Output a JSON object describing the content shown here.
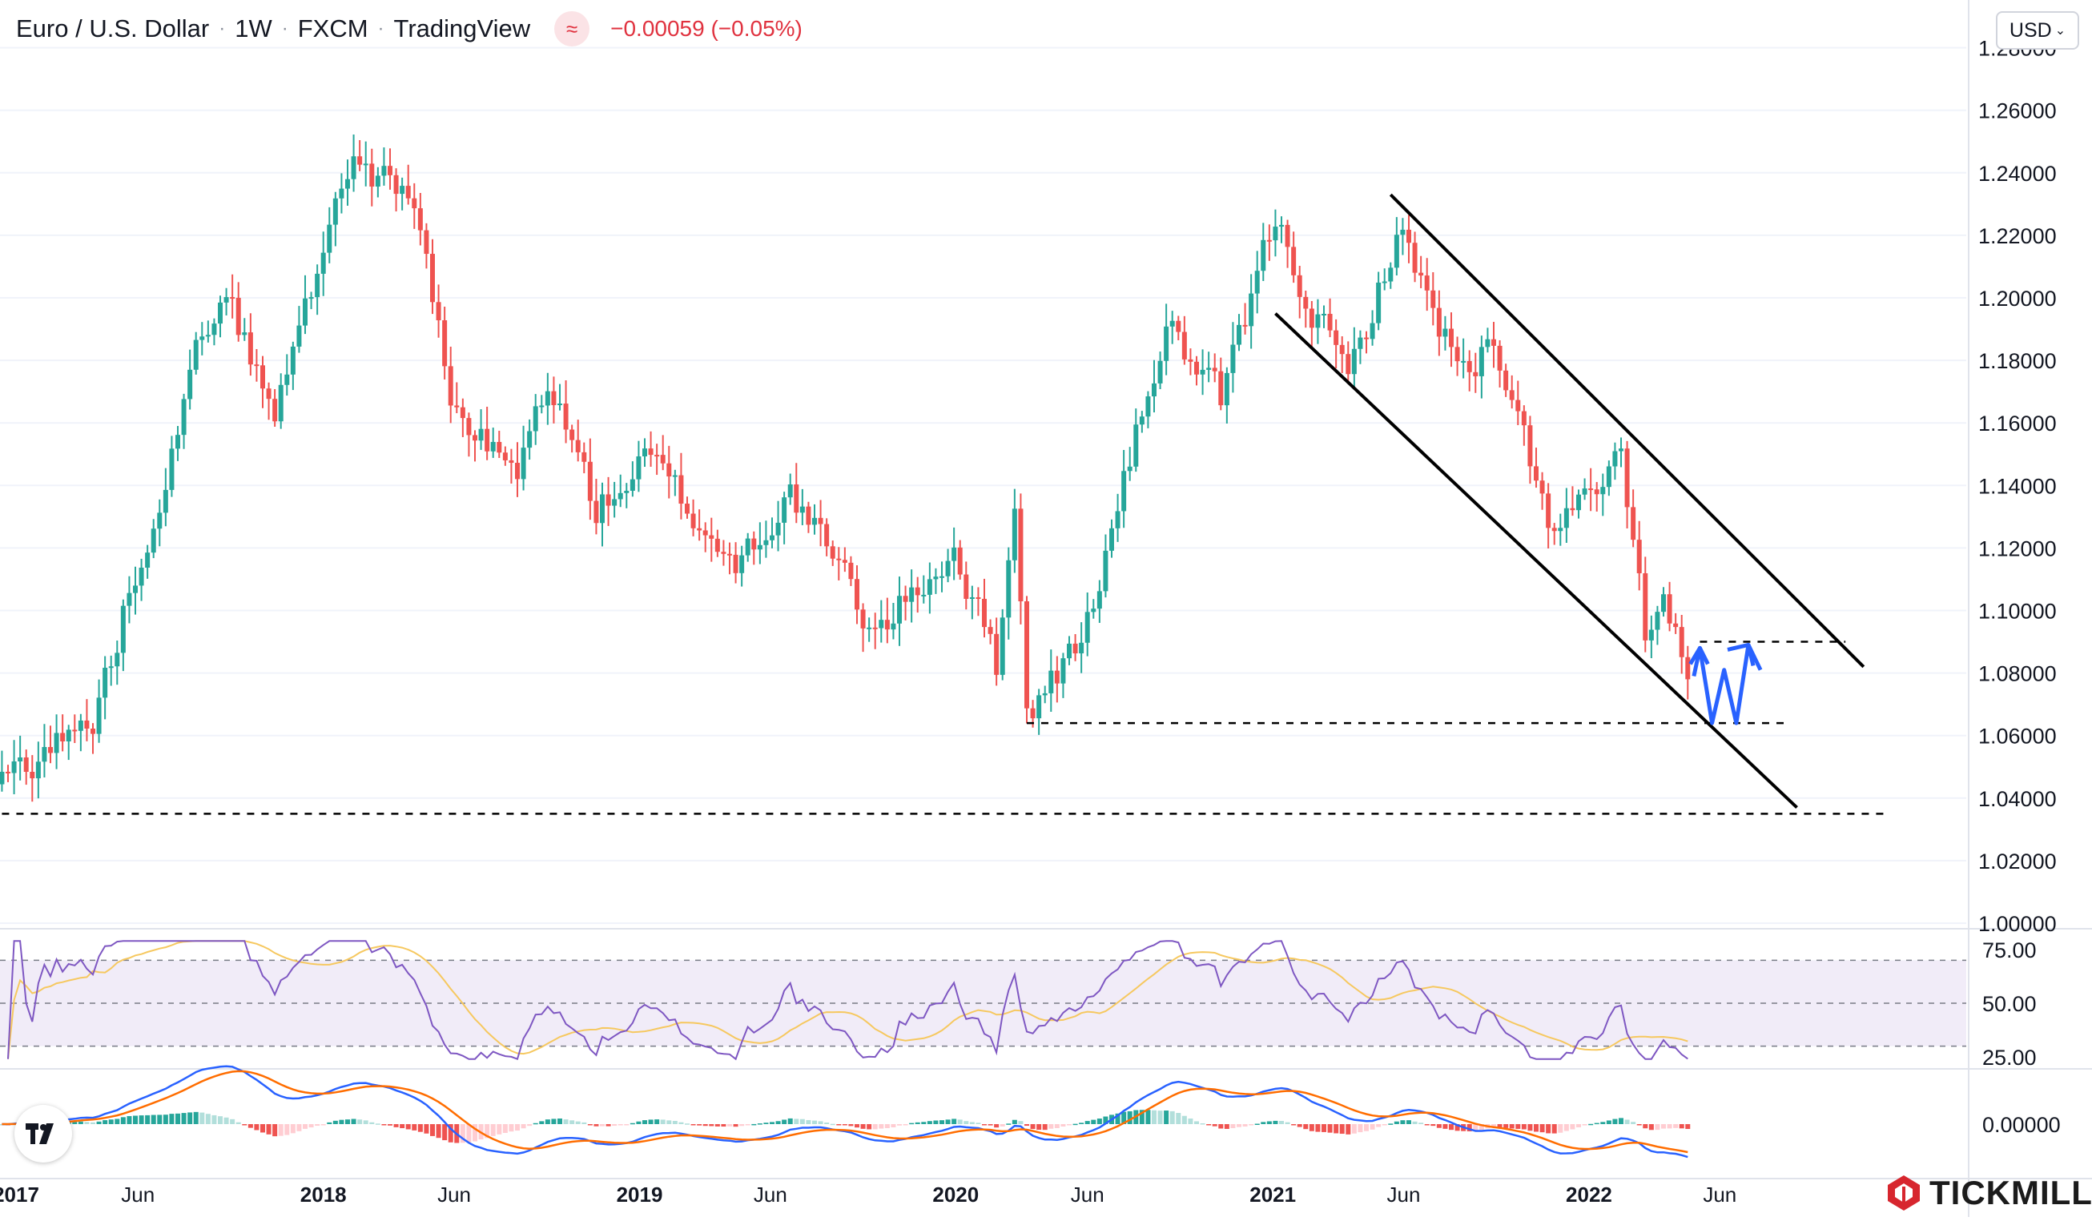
{
  "header": {
    "symbol": "Euro / U.S. Dollar",
    "interval": "1W",
    "exchange": "FXCM",
    "source": "TradingView",
    "change": "−0.00059 (−0.05%)"
  },
  "currency_button": "USD",
  "brand": "TICKMILL",
  "colors": {
    "up": "#26a69a",
    "down": "#ef5350",
    "rsi": "#7e57c2",
    "rsi_ma": "#f6c85f",
    "macd": "#2962ff",
    "signal": "#ff6d00",
    "arrow": "#2962ff"
  },
  "chart_data": [
    {
      "type": "candlestick",
      "x_axis_labels": [
        "2017",
        "Jun",
        "2018",
        "Jun",
        "2019",
        "Jun",
        "2020",
        "Jun",
        "2021",
        "Jun",
        "2022",
        "Jun"
      ],
      "y_axis_labels": [
        "1.28000",
        "1.26000",
        "1.24000",
        "1.22000",
        "1.20000",
        "1.18000",
        "1.16000",
        "1.14000",
        "1.12000",
        "1.10000",
        "1.08000",
        "1.06000",
        "1.04000",
        "1.02000",
        "1.00000"
      ],
      "ylim": [
        1.0,
        1.285
      ],
      "anchors": [
        {
          "date": "2016-12-26",
          "close": 1.045
        },
        {
          "date": "2017-02-20",
          "close": 1.058
        },
        {
          "date": "2017-04-10",
          "close": 1.063
        },
        {
          "date": "2017-06-05",
          "close": 1.121
        },
        {
          "date": "2017-09-04",
          "close": 1.205
        },
        {
          "date": "2017-11-06",
          "close": 1.162
        },
        {
          "date": "2018-01-29",
          "close": 1.245
        },
        {
          "date": "2018-04-16",
          "close": 1.232
        },
        {
          "date": "2018-05-28",
          "close": 1.165
        },
        {
          "date": "2018-08-13",
          "close": 1.142
        },
        {
          "date": "2018-09-17",
          "close": 1.175
        },
        {
          "date": "2018-11-12",
          "close": 1.132
        },
        {
          "date": "2019-01-07",
          "close": 1.148
        },
        {
          "date": "2019-04-22",
          "close": 1.115
        },
        {
          "date": "2019-06-24",
          "close": 1.138
        },
        {
          "date": "2019-10-01",
          "close": 1.092
        },
        {
          "date": "2019-12-30",
          "close": 1.121
        },
        {
          "date": "2020-02-17",
          "close": 1.082
        },
        {
          "date": "2020-03-09",
          "close": 1.138
        },
        {
          "date": "2020-03-23",
          "close": 1.068
        },
        {
          "date": "2020-05-25",
          "close": 1.089
        },
        {
          "date": "2020-08-31",
          "close": 1.192
        },
        {
          "date": "2020-11-02",
          "close": 1.164
        },
        {
          "date": "2021-01-04",
          "close": 1.225
        },
        {
          "date": "2021-03-29",
          "close": 1.172
        },
        {
          "date": "2021-05-24",
          "close": 1.222
        },
        {
          "date": "2021-08-16",
          "close": 1.172
        },
        {
          "date": "2021-09-06",
          "close": 1.185
        },
        {
          "date": "2021-11-22",
          "close": 1.125
        },
        {
          "date": "2022-02-07",
          "close": 1.145
        },
        {
          "date": "2022-03-07",
          "close": 1.092
        },
        {
          "date": "2022-03-28",
          "close": 1.102
        },
        {
          "date": "2022-04-25",
          "close": 1.078
        }
      ],
      "trend_channel": {
        "upper": [
          {
            "date": "2021-05-17",
            "price": 1.233
          },
          {
            "date": "2022-11-14",
            "price": 1.082
          }
        ],
        "lower": [
          {
            "date": "2021-01-04",
            "price": 1.195
          },
          {
            "date": "2022-08-29",
            "price": 1.037
          }
        ]
      },
      "support_lines": [
        {
          "price": 1.035,
          "from": "2016-12-26",
          "to": "2022-12-12"
        },
        {
          "price": 1.064,
          "from": "2020-03-23",
          "to": "2022-08-15"
        },
        {
          "price": 1.09,
          "from": "2022-05-09",
          "to": "2022-10-24"
        }
      ],
      "projection_path": [
        {
          "date": "2022-05-02",
          "price": 1.079
        },
        {
          "date": "2022-05-09",
          "price": 1.088
        },
        {
          "date": "2022-05-23",
          "price": 1.064
        },
        {
          "date": "2022-06-06",
          "price": 1.081
        },
        {
          "date": "2022-06-20",
          "price": 1.064
        },
        {
          "date": "2022-07-04",
          "price": 1.089
        },
        {
          "date": "2022-07-18",
          "price": 1.081
        }
      ]
    },
    {
      "type": "line",
      "name_hidden": true,
      "y_axis_labels": [
        "75.00",
        "50.00",
        "25.00"
      ],
      "ylim": [
        22,
        80
      ],
      "bands": [
        30,
        70
      ],
      "midline": 50
    },
    {
      "type": "histogram_line",
      "y_axis_labels": [
        "0.00000"
      ]
    }
  ]
}
